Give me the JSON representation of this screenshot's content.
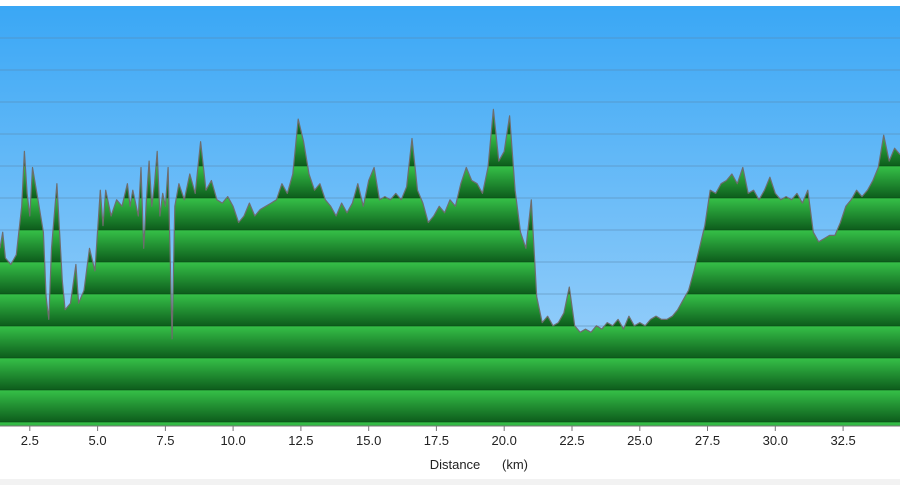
{
  "chart_data": {
    "type": "area",
    "xlabel": "Distance",
    "xunit": "(km)",
    "xlim": [
      1.4,
      34.6
    ],
    "x_ticks": [
      "2.5",
      "5.0",
      "7.5",
      "10.0",
      "12.5",
      "15.0",
      "17.5",
      "20.0",
      "22.5",
      "25.0",
      "27.5",
      "30.0",
      "32.5"
    ],
    "ylim": [
      0,
      13
    ],
    "grid": true,
    "colors": {
      "sky_top": "#3aa7f5",
      "sky_bottom": "#a8d6fb",
      "fill_light": "#36c148",
      "fill_dark": "#0d5c1c",
      "outline": "#6d6d6d"
    },
    "series": [
      {
        "values": [
          [
            1.4,
            5.5
          ],
          [
            1.5,
            6.0
          ],
          [
            1.6,
            5.2
          ],
          [
            1.8,
            5.0
          ],
          [
            2.0,
            5.3
          ],
          [
            2.2,
            6.8
          ],
          [
            2.3,
            8.5
          ],
          [
            2.4,
            7.2
          ],
          [
            2.5,
            6.5
          ],
          [
            2.6,
            8.0
          ],
          [
            2.8,
            7.0
          ],
          [
            3.0,
            6.0
          ],
          [
            3.1,
            4.0
          ],
          [
            3.2,
            3.3
          ],
          [
            3.3,
            5.5
          ],
          [
            3.5,
            7.5
          ],
          [
            3.6,
            6.0
          ],
          [
            3.7,
            4.5
          ],
          [
            3.8,
            3.6
          ],
          [
            4.0,
            3.8
          ],
          [
            4.2,
            5.0
          ],
          [
            4.3,
            3.8
          ],
          [
            4.5,
            4.2
          ],
          [
            4.7,
            5.5
          ],
          [
            4.9,
            4.8
          ],
          [
            5.1,
            7.3
          ],
          [
            5.2,
            6.2
          ],
          [
            5.3,
            7.3
          ],
          [
            5.5,
            6.5
          ],
          [
            5.7,
            7.0
          ],
          [
            5.9,
            6.8
          ],
          [
            6.1,
            7.5
          ],
          [
            6.2,
            6.8
          ],
          [
            6.3,
            7.3
          ],
          [
            6.5,
            6.5
          ],
          [
            6.6,
            8.0
          ],
          [
            6.7,
            5.5
          ],
          [
            6.8,
            7.0
          ],
          [
            6.9,
            8.2
          ],
          [
            7.0,
            6.8
          ],
          [
            7.1,
            7.5
          ],
          [
            7.2,
            8.5
          ],
          [
            7.3,
            6.5
          ],
          [
            7.4,
            7.2
          ],
          [
            7.5,
            6.8
          ],
          [
            7.6,
            8.0
          ],
          [
            7.75,
            2.7
          ],
          [
            7.85,
            6.8
          ],
          [
            8.0,
            7.5
          ],
          [
            8.2,
            7.0
          ],
          [
            8.4,
            7.8
          ],
          [
            8.6,
            7.2
          ],
          [
            8.8,
            8.8
          ],
          [
            9.0,
            7.3
          ],
          [
            9.2,
            7.6
          ],
          [
            9.4,
            7.0
          ],
          [
            9.6,
            6.9
          ],
          [
            9.8,
            7.1
          ],
          [
            10.0,
            6.8
          ],
          [
            10.2,
            6.3
          ],
          [
            10.4,
            6.5
          ],
          [
            10.6,
            6.9
          ],
          [
            10.8,
            6.5
          ],
          [
            11.0,
            6.7
          ],
          [
            11.2,
            6.8
          ],
          [
            11.4,
            6.9
          ],
          [
            11.6,
            7.0
          ],
          [
            11.8,
            7.5
          ],
          [
            12.0,
            7.2
          ],
          [
            12.2,
            7.8
          ],
          [
            12.4,
            9.5
          ],
          [
            12.6,
            8.8
          ],
          [
            12.8,
            7.8
          ],
          [
            13.0,
            7.3
          ],
          [
            13.2,
            7.5
          ],
          [
            13.4,
            7.0
          ],
          [
            13.6,
            6.8
          ],
          [
            13.8,
            6.5
          ],
          [
            14.0,
            6.9
          ],
          [
            14.2,
            6.6
          ],
          [
            14.4,
            6.9
          ],
          [
            14.6,
            7.5
          ],
          [
            14.8,
            6.8
          ],
          [
            15.0,
            7.6
          ],
          [
            15.2,
            8.0
          ],
          [
            15.4,
            7.0
          ],
          [
            15.6,
            7.1
          ],
          [
            15.8,
            7.0
          ],
          [
            16.0,
            7.2
          ],
          [
            16.2,
            7.0
          ],
          [
            16.4,
            7.4
          ],
          [
            16.6,
            8.9
          ],
          [
            16.8,
            7.3
          ],
          [
            17.0,
            6.9
          ],
          [
            17.2,
            6.3
          ],
          [
            17.4,
            6.5
          ],
          [
            17.6,
            6.8
          ],
          [
            17.8,
            6.6
          ],
          [
            18.0,
            7.0
          ],
          [
            18.2,
            6.8
          ],
          [
            18.4,
            7.5
          ],
          [
            18.6,
            8.0
          ],
          [
            18.8,
            7.6
          ],
          [
            19.0,
            7.5
          ],
          [
            19.2,
            7.2
          ],
          [
            19.4,
            8.0
          ],
          [
            19.6,
            9.8
          ],
          [
            19.8,
            8.2
          ],
          [
            20.0,
            8.5
          ],
          [
            20.2,
            9.6
          ],
          [
            20.4,
            7.3
          ],
          [
            20.6,
            6.0
          ],
          [
            20.8,
            5.5
          ],
          [
            21.0,
            7.0
          ],
          [
            21.2,
            4.0
          ],
          [
            21.4,
            3.2
          ],
          [
            21.6,
            3.4
          ],
          [
            21.8,
            3.1
          ],
          [
            22.0,
            3.2
          ],
          [
            22.2,
            3.5
          ],
          [
            22.4,
            4.3
          ],
          [
            22.6,
            3.1
          ],
          [
            22.8,
            2.9
          ],
          [
            23.0,
            3.0
          ],
          [
            23.2,
            2.9
          ],
          [
            23.4,
            3.1
          ],
          [
            23.6,
            3.0
          ],
          [
            23.8,
            3.2
          ],
          [
            24.0,
            3.1
          ],
          [
            24.2,
            3.3
          ],
          [
            24.4,
            3.0
          ],
          [
            24.6,
            3.4
          ],
          [
            24.8,
            3.1
          ],
          [
            25.0,
            3.2
          ],
          [
            25.2,
            3.1
          ],
          [
            25.4,
            3.3
          ],
          [
            25.6,
            3.4
          ],
          [
            25.8,
            3.3
          ],
          [
            26.0,
            3.3
          ],
          [
            26.2,
            3.4
          ],
          [
            26.4,
            3.6
          ],
          [
            26.6,
            3.9
          ],
          [
            26.8,
            4.2
          ],
          [
            27.0,
            4.8
          ],
          [
            27.2,
            5.5
          ],
          [
            27.4,
            6.2
          ],
          [
            27.6,
            7.3
          ],
          [
            27.8,
            7.2
          ],
          [
            28.0,
            7.5
          ],
          [
            28.2,
            7.6
          ],
          [
            28.4,
            7.8
          ],
          [
            28.6,
            7.5
          ],
          [
            28.8,
            8.0
          ],
          [
            29.0,
            7.2
          ],
          [
            29.2,
            7.3
          ],
          [
            29.4,
            7.0
          ],
          [
            29.6,
            7.3
          ],
          [
            29.8,
            7.7
          ],
          [
            30.0,
            7.2
          ],
          [
            30.2,
            7.0
          ],
          [
            30.4,
            7.1
          ],
          [
            30.6,
            7.0
          ],
          [
            30.8,
            7.2
          ],
          [
            31.0,
            6.9
          ],
          [
            31.2,
            7.3
          ],
          [
            31.4,
            6.0
          ],
          [
            31.6,
            5.7
          ],
          [
            31.8,
            5.8
          ],
          [
            32.0,
            5.9
          ],
          [
            32.2,
            5.9
          ],
          [
            32.4,
            6.3
          ],
          [
            32.6,
            6.8
          ],
          [
            32.8,
            7.0
          ],
          [
            33.0,
            7.3
          ],
          [
            33.2,
            7.1
          ],
          [
            33.4,
            7.3
          ],
          [
            33.6,
            7.6
          ],
          [
            33.8,
            8.0
          ],
          [
            34.0,
            9.0
          ],
          [
            34.2,
            8.2
          ],
          [
            34.4,
            8.6
          ],
          [
            34.6,
            8.4
          ]
        ]
      }
    ]
  }
}
